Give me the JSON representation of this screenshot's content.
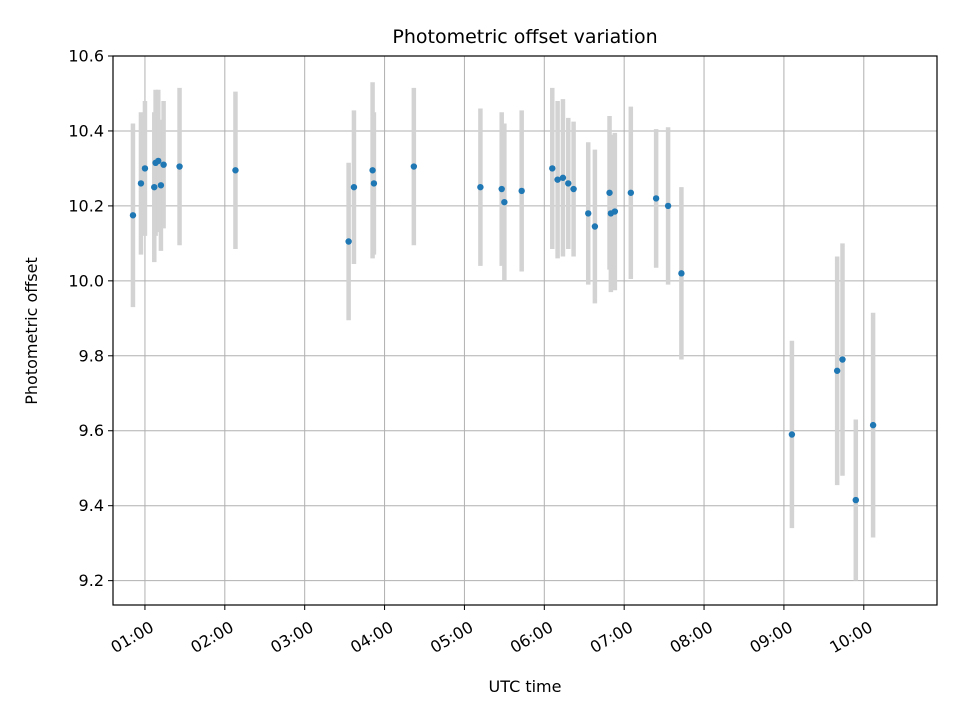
{
  "chart_data": {
    "type": "scatter",
    "title": "Photometric offset variation",
    "xlabel": "UTC time",
    "ylabel": "Photometric offset",
    "x_ticks": [
      "01:00",
      "02:00",
      "03:00",
      "04:00",
      "05:00",
      "06:00",
      "07:00",
      "08:00",
      "09:00",
      "10:00"
    ],
    "y_ticks": [
      "9.2",
      "9.4",
      "9.6",
      "9.8",
      "10.0",
      "10.2",
      "10.4",
      "10.6"
    ],
    "xlim": [
      "00:36",
      "10:55"
    ],
    "ylim": [
      9.135,
      10.6
    ],
    "grid": true,
    "point_color": "#1f77b4",
    "errorbar_color": "#d3d3d3",
    "points": [
      {
        "x": "00:51",
        "y": 10.175,
        "err": 0.245
      },
      {
        "x": "00:57",
        "y": 10.26,
        "err": 0.19
      },
      {
        "x": "01:00",
        "y": 10.3,
        "err": 0.18
      },
      {
        "x": "01:07",
        "y": 10.25,
        "err": 0.2
      },
      {
        "x": "01:08",
        "y": 10.315,
        "err": 0.195
      },
      {
        "x": "01:10",
        "y": 10.32,
        "err": 0.19
      },
      {
        "x": "01:12",
        "y": 10.255,
        "err": 0.175
      },
      {
        "x": "01:14",
        "y": 10.31,
        "err": 0.17
      },
      {
        "x": "01:26",
        "y": 10.305,
        "err": 0.21
      },
      {
        "x": "02:08",
        "y": 10.295,
        "err": 0.21
      },
      {
        "x": "03:33",
        "y": 10.105,
        "err": 0.21
      },
      {
        "x": "03:37",
        "y": 10.25,
        "err": 0.205
      },
      {
        "x": "03:51",
        "y": 10.295,
        "err": 0.235
      },
      {
        "x": "03:52",
        "y": 10.26,
        "err": 0.19
      },
      {
        "x": "04:22",
        "y": 10.305,
        "err": 0.21
      },
      {
        "x": "05:12",
        "y": 10.25,
        "err": 0.21
      },
      {
        "x": "05:28",
        "y": 10.245,
        "err": 0.205
      },
      {
        "x": "05:30",
        "y": 10.21,
        "err": 0.21
      },
      {
        "x": "05:43",
        "y": 10.24,
        "err": 0.215
      },
      {
        "x": "06:06",
        "y": 10.3,
        "err": 0.215
      },
      {
        "x": "06:10",
        "y": 10.27,
        "err": 0.21
      },
      {
        "x": "06:14",
        "y": 10.275,
        "err": 0.21
      },
      {
        "x": "06:18",
        "y": 10.26,
        "err": 0.175
      },
      {
        "x": "06:22",
        "y": 10.245,
        "err": 0.18
      },
      {
        "x": "06:33",
        "y": 10.18,
        "err": 0.19
      },
      {
        "x": "06:38",
        "y": 10.145,
        "err": 0.205
      },
      {
        "x": "06:49",
        "y": 10.235,
        "err": 0.205
      },
      {
        "x": "06:50",
        "y": 10.18,
        "err": 0.21
      },
      {
        "x": "06:53",
        "y": 10.185,
        "err": 0.21
      },
      {
        "x": "07:05",
        "y": 10.235,
        "err": 0.23
      },
      {
        "x": "07:24",
        "y": 10.22,
        "err": 0.185
      },
      {
        "x": "07:33",
        "y": 10.2,
        "err": 0.21
      },
      {
        "x": "07:43",
        "y": 10.02,
        "err": 0.23
      },
      {
        "x": "09:06",
        "y": 9.59,
        "err": 0.25
      },
      {
        "x": "09:40",
        "y": 9.76,
        "err": 0.305
      },
      {
        "x": "09:44",
        "y": 9.79,
        "err": 0.31
      },
      {
        "x": "09:54",
        "y": 9.415,
        "err": 0.215
      },
      {
        "x": "10:07",
        "y": 9.615,
        "err": 0.3
      }
    ]
  }
}
